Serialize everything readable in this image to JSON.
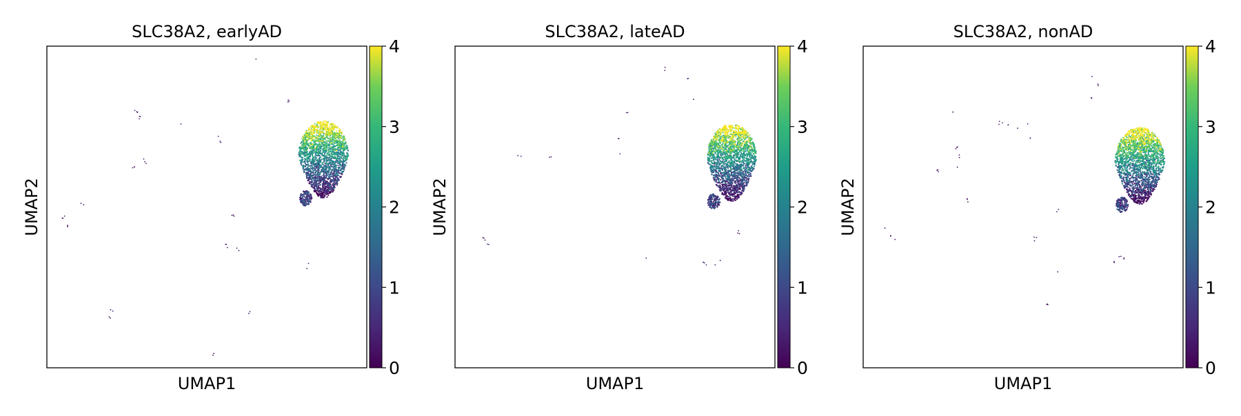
{
  "chart_data": [
    {
      "type": "scatter",
      "title": "SLC38A2, earlyAD",
      "xlabel": "UMAP1",
      "ylabel": "UMAP2",
      "colorbar": {
        "colormap": "viridis",
        "range": [
          0,
          4
        ],
        "ticks": [
          "0",
          "1",
          "2",
          "3",
          "4"
        ]
      },
      "grid": false,
      "axis_ticks": false,
      "cluster": {
        "center": [
          0.865,
          0.66
        ],
        "description": "dense main cluster with high values in the upper part (yellow/green) and low values at the bottom (purple), plus a small low-value sub-cluster below left"
      },
      "sparse_points": [
        [
          0.66,
          0.96
        ],
        [
          0.28,
          0.8
        ],
        [
          0.29,
          0.78
        ],
        [
          0.42,
          0.76
        ],
        [
          0.75,
          0.83
        ],
        [
          0.76,
          0.83
        ],
        [
          0.53,
          0.72
        ],
        [
          0.54,
          0.7
        ],
        [
          0.3,
          0.65
        ],
        [
          0.31,
          0.64
        ],
        [
          0.27,
          0.62
        ],
        [
          0.11,
          0.51
        ],
        [
          0.05,
          0.47
        ],
        [
          0.07,
          0.44
        ],
        [
          0.58,
          0.47
        ],
        [
          0.56,
          0.38
        ],
        [
          0.6,
          0.37
        ],
        [
          0.82,
          0.33
        ],
        [
          0.81,
          0.31
        ],
        [
          0.2,
          0.18
        ],
        [
          0.2,
          0.16
        ],
        [
          0.63,
          0.17
        ],
        [
          0.52,
          0.04
        ]
      ]
    },
    {
      "type": "scatter",
      "title": "SLC38A2, lateAD",
      "xlabel": "UMAP1",
      "ylabel": "UMAP2",
      "colorbar": {
        "colormap": "viridis",
        "range": [
          0,
          4
        ],
        "ticks": [
          "0",
          "1",
          "2",
          "3",
          "4"
        ]
      },
      "grid": false,
      "axis_ticks": false,
      "cluster": {
        "center": [
          0.865,
          0.65
        ],
        "description": "dense main cluster with high values in the upper part (yellow/green) and low values at the bottom (purple), plus a small low-value sub-cluster below left"
      },
      "sparse_points": [
        [
          0.66,
          0.93
        ],
        [
          0.73,
          0.9
        ],
        [
          0.74,
          0.83
        ],
        [
          0.54,
          0.79
        ],
        [
          0.51,
          0.71
        ],
        [
          0.52,
          0.67
        ],
        [
          0.3,
          0.66
        ],
        [
          0.3,
          0.65
        ],
        [
          0.2,
          0.66
        ],
        [
          0.09,
          0.4
        ],
        [
          0.1,
          0.38
        ],
        [
          0.6,
          0.34
        ],
        [
          0.89,
          0.42
        ],
        [
          0.78,
          0.33
        ],
        [
          0.81,
          0.32
        ],
        [
          0.83,
          0.33
        ],
        [
          0.79,
          0.32
        ]
      ]
    },
    {
      "type": "scatter",
      "title": "SLC38A2, nonAD",
      "xlabel": "UMAP1",
      "ylabel": "UMAP2",
      "colorbar": {
        "colormap": "viridis",
        "range": [
          0,
          4
        ],
        "ticks": [
          "0",
          "1",
          "2",
          "3",
          "4"
        ]
      },
      "grid": false,
      "axis_ticks": false,
      "cluster": {
        "center": [
          0.865,
          0.64
        ],
        "description": "dense main cluster with high values in the upper part (yellow/green) and low values at the bottom (purple), plus a small low-value sub-cluster below left"
      },
      "sparse_points": [
        [
          0.72,
          0.91
        ],
        [
          0.73,
          0.88
        ],
        [
          0.71,
          0.84
        ],
        [
          0.28,
          0.79
        ],
        [
          0.52,
          0.76
        ],
        [
          0.43,
          0.76
        ],
        [
          0.45,
          0.75
        ],
        [
          0.48,
          0.74
        ],
        [
          0.52,
          0.71
        ],
        [
          0.29,
          0.68
        ],
        [
          0.3,
          0.66
        ],
        [
          0.29,
          0.62
        ],
        [
          0.23,
          0.61
        ],
        [
          0.33,
          0.52
        ],
        [
          0.61,
          0.49
        ],
        [
          0.07,
          0.44
        ],
        [
          0.09,
          0.41
        ],
        [
          0.1,
          0.4
        ],
        [
          0.54,
          0.4
        ],
        [
          0.61,
          0.3
        ],
        [
          0.8,
          0.35
        ],
        [
          0.79,
          0.33
        ],
        [
          0.82,
          0.34
        ],
        [
          0.58,
          0.2
        ]
      ]
    }
  ]
}
